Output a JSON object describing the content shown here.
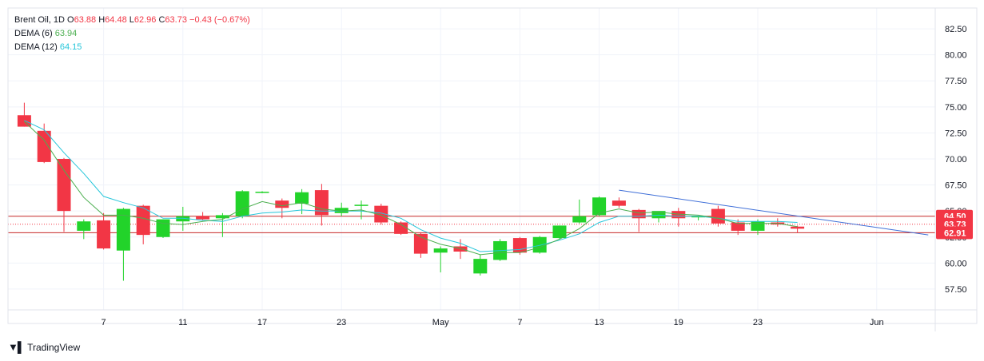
{
  "legend": {
    "symbol": "Brent Oil",
    "interval": "1D",
    "o_label": "O",
    "o": "63.88",
    "h_label": "H",
    "h": "64.48",
    "l_label": "L",
    "l": "62.96",
    "c_label": "C",
    "c": "63.73",
    "change": "−0.43 (−0.67%)",
    "dema6_label": "DEMA (6)",
    "dema6": "63.94",
    "dema12_label": "DEMA (12)",
    "dema12": "64.15"
  },
  "brand": {
    "name": "TradingView"
  },
  "colors": {
    "up": "#22d32a",
    "down": "#f23645",
    "dema6": "#4caf50",
    "dema12": "#26c6da",
    "trend": "#3f6fd8",
    "level": "#c62828"
  },
  "chart_data": {
    "type": "candlestick",
    "ylim": [
      55.5,
      84.5
    ],
    "y_ticks": [
      "82.50",
      "80.00",
      "77.50",
      "75.00",
      "72.50",
      "70.00",
      "67.50",
      "65.00",
      "62.50",
      "60.00",
      "57.50"
    ],
    "x_ticks": [
      {
        "label": "7",
        "index": 4
      },
      {
        "label": "11",
        "index": 8
      },
      {
        "label": "17",
        "index": 12
      },
      {
        "label": "23",
        "index": 16
      },
      {
        "label": "May",
        "index": 21
      },
      {
        "label": "7",
        "index": 25
      },
      {
        "label": "13",
        "index": 29
      },
      {
        "label": "19",
        "index": 33
      },
      {
        "label": "23",
        "index": 37
      },
      {
        "label": "Jun",
        "index": 43
      }
    ],
    "price_labels": [
      {
        "value": 64.5,
        "text": "64.50"
      },
      {
        "value": 63.73,
        "text": "63.73"
      },
      {
        "value": 62.91,
        "text": "62.91"
      }
    ],
    "horizontal_levels": [
      64.5,
      62.91
    ],
    "current_price": 63.73,
    "trendline": {
      "x1": 30,
      "y1": 67.0,
      "x2": 45.6,
      "y2": 62.7
    },
    "candles": [
      {
        "o": 74.2,
        "h": 75.4,
        "l": 73.1,
        "c": 73.1
      },
      {
        "o": 72.7,
        "h": 73.4,
        "l": 69.6,
        "c": 69.7
      },
      {
        "o": 70.0,
        "h": 70.1,
        "l": 63.0,
        "c": 65.0
      },
      {
        "o": 63.1,
        "h": 64.2,
        "l": 62.3,
        "c": 64.0
      },
      {
        "o": 64.1,
        "h": 64.8,
        "l": 61.3,
        "c": 61.4
      },
      {
        "o": 61.2,
        "h": 65.3,
        "l": 58.3,
        "c": 65.2
      },
      {
        "o": 65.5,
        "h": 65.6,
        "l": 61.8,
        "c": 62.7
      },
      {
        "o": 62.5,
        "h": 64.2,
        "l": 62.4,
        "c": 64.2
      },
      {
        "o": 64.0,
        "h": 65.4,
        "l": 63.1,
        "c": 64.5
      },
      {
        "o": 64.5,
        "h": 64.9,
        "l": 64.1,
        "c": 64.2
      },
      {
        "o": 64.3,
        "h": 64.8,
        "l": 62.5,
        "c": 64.6
      },
      {
        "o": 64.5,
        "h": 67.0,
        "l": 64.3,
        "c": 66.9
      },
      {
        "o": 66.8,
        "h": 66.9,
        "l": 66.7,
        "c": 66.85
      },
      {
        "o": 66.0,
        "h": 66.2,
        "l": 64.3,
        "c": 65.3
      },
      {
        "o": 65.7,
        "h": 67.1,
        "l": 64.7,
        "c": 66.8
      },
      {
        "o": 67.0,
        "h": 67.6,
        "l": 63.6,
        "c": 64.6
      },
      {
        "o": 64.8,
        "h": 65.8,
        "l": 64.5,
        "c": 65.3
      },
      {
        "o": 65.5,
        "h": 66.0,
        "l": 64.2,
        "c": 65.6
      },
      {
        "o": 65.5,
        "h": 65.7,
        "l": 63.7,
        "c": 63.9
      },
      {
        "o": 63.9,
        "h": 64.0,
        "l": 62.7,
        "c": 62.8
      },
      {
        "o": 62.8,
        "h": 62.9,
        "l": 60.5,
        "c": 60.9
      },
      {
        "o": 61.0,
        "h": 61.6,
        "l": 59.1,
        "c": 61.4
      },
      {
        "o": 61.6,
        "h": 62.3,
        "l": 60.4,
        "c": 61.1
      },
      {
        "o": 59.0,
        "h": 60.8,
        "l": 58.8,
        "c": 60.4
      },
      {
        "o": 60.3,
        "h": 62.3,
        "l": 60.2,
        "c": 62.1
      },
      {
        "o": 62.4,
        "h": 62.5,
        "l": 60.8,
        "c": 61.0
      },
      {
        "o": 61.0,
        "h": 62.6,
        "l": 60.9,
        "c": 62.5
      },
      {
        "o": 62.4,
        "h": 63.6,
        "l": 62.3,
        "c": 63.6
      },
      {
        "o": 63.9,
        "h": 66.1,
        "l": 63.8,
        "c": 64.5
      },
      {
        "o": 64.6,
        "h": 66.4,
        "l": 64.5,
        "c": 66.3
      },
      {
        "o": 66.0,
        "h": 66.3,
        "l": 65.3,
        "c": 65.5
      },
      {
        "o": 65.1,
        "h": 65.2,
        "l": 63.0,
        "c": 64.3
      },
      {
        "o": 64.3,
        "h": 64.9,
        "l": 63.9,
        "c": 65.0
      },
      {
        "o": 65.0,
        "h": 65.3,
        "l": 63.5,
        "c": 64.3
      },
      {
        "o": 64.4,
        "h": 64.5,
        "l": 64.1,
        "c": 64.5
      },
      {
        "o": 65.2,
        "h": 65.5,
        "l": 63.5,
        "c": 63.8
      },
      {
        "o": 63.9,
        "h": 64.2,
        "l": 62.7,
        "c": 63.1
      },
      {
        "o": 63.1,
        "h": 64.2,
        "l": 62.7,
        "c": 64.0
      },
      {
        "o": 63.9,
        "h": 64.3,
        "l": 63.5,
        "c": 63.7
      },
      {
        "o": 63.5,
        "h": 63.6,
        "l": 62.9,
        "c": 63.3
      }
    ],
    "dema6": [
      73.6,
      71.8,
      68.9,
      66.3,
      64.6,
      64.6,
      64.3,
      63.8,
      63.7,
      64.0,
      64.2,
      65.2,
      65.9,
      65.5,
      65.8,
      65.2,
      65.0,
      65.1,
      64.6,
      63.7,
      62.5,
      61.8,
      61.4,
      60.8,
      61.0,
      61.0,
      61.5,
      62.3,
      63.3,
      64.8,
      65.2,
      64.8,
      64.9,
      64.7,
      64.6,
      64.3,
      63.8,
      63.8,
      63.8,
      63.5
    ],
    "dema12": [
      73.7,
      72.8,
      70.6,
      68.6,
      66.4,
      65.8,
      65.3,
      64.3,
      64.3,
      64.1,
      64.0,
      64.5,
      64.8,
      64.9,
      65.1,
      65.0,
      65.0,
      65.0,
      64.8,
      64.3,
      63.2,
      62.4,
      61.9,
      61.1,
      61.2,
      61.3,
      61.7,
      62.2,
      62.8,
      63.9,
      64.5,
      64.5,
      64.6,
      64.5,
      64.5,
      64.3,
      64.0,
      64.0,
      64.0,
      63.9
    ]
  }
}
